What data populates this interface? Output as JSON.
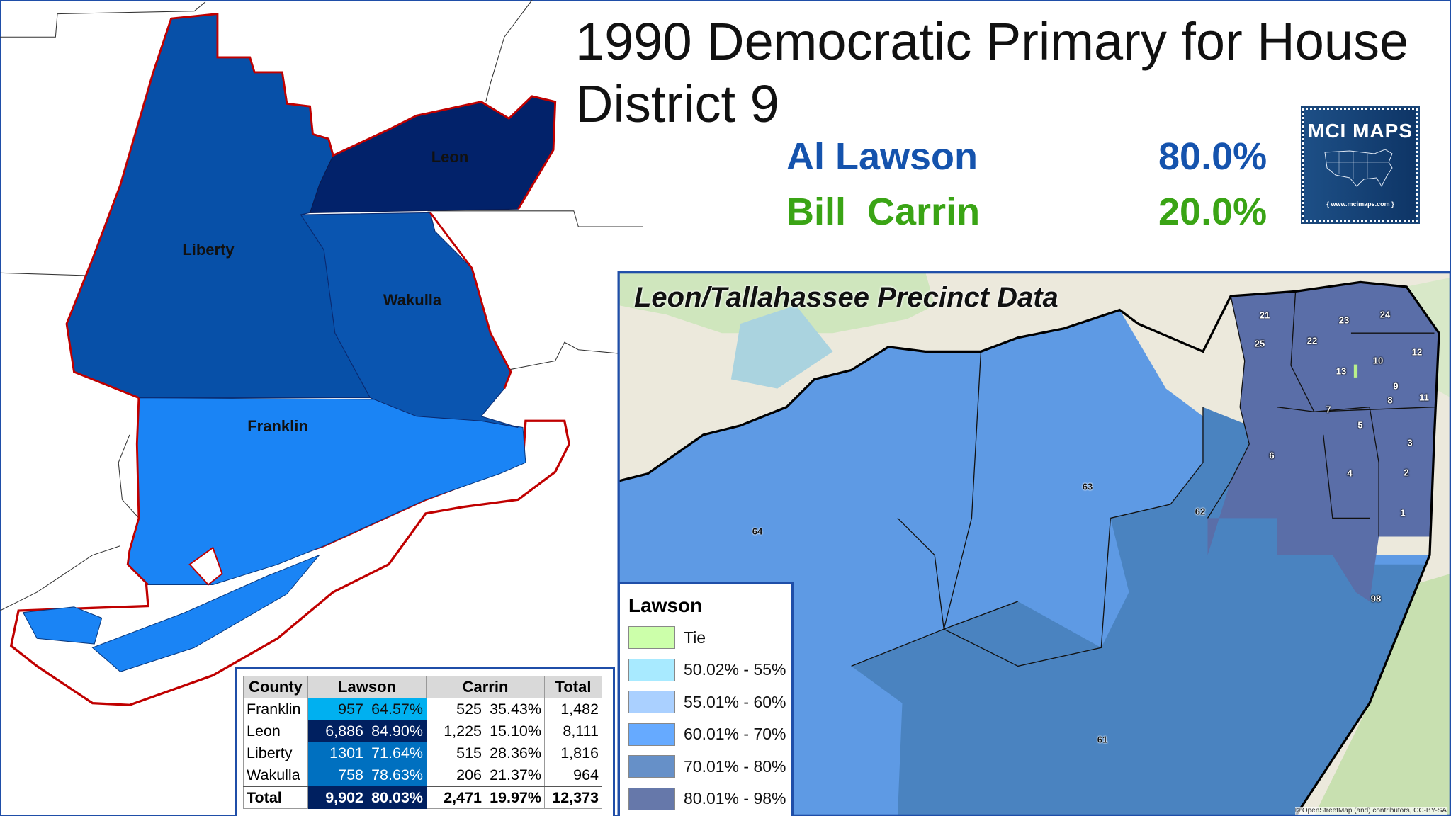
{
  "title": {
    "line1": "1990 Democratic Primary for House",
    "line2": "District 9"
  },
  "results": [
    {
      "candidate": "Al Lawson",
      "percent": "80.0%",
      "color": "#1553ad"
    },
    {
      "candidate": "Bill  Carrin",
      "percent": "20.0%",
      "color": "#3aa415"
    }
  ],
  "logo": {
    "text": "MCI MAPS",
    "url": "{ www.mcimaps.com }"
  },
  "district_map": {
    "counties": [
      {
        "name": "Leon",
        "color": "#02226a"
      },
      {
        "name": "Liberty",
        "color": "#0750a8"
      },
      {
        "name": "Wakulla",
        "color": "#0a55b0"
      },
      {
        "name": "Franklin",
        "color": "#1a84f5"
      }
    ],
    "outline_color": "#c00000"
  },
  "table": {
    "headers": [
      "County",
      "Lawson",
      "Carrin",
      "Total"
    ],
    "rows": [
      {
        "county": "Franklin",
        "lawson": "957",
        "lawson_pct": "64.57%",
        "carrin": "525",
        "carrin_pct": "35.43%",
        "total": "1,482",
        "fill": "#00b0f0",
        "text": "#111"
      },
      {
        "county": "Leon",
        "lawson": "6,886",
        "lawson_pct": "84.90%",
        "carrin": "1,225",
        "carrin_pct": "15.10%",
        "total": "8,111",
        "fill": "#002060",
        "text": "#fff"
      },
      {
        "county": "Liberty",
        "lawson": "1301",
        "lawson_pct": "71.64%",
        "carrin": "515",
        "carrin_pct": "28.36%",
        "total": "1,816",
        "fill": "#0070c0",
        "text": "#fff"
      },
      {
        "county": "Wakulla",
        "lawson": "758",
        "lawson_pct": "78.63%",
        "carrin": "206",
        "carrin_pct": "21.37%",
        "total": "964",
        "fill": "#0070c0",
        "text": "#fff"
      },
      {
        "county": "Total",
        "lawson": "9,902",
        "lawson_pct": "80.03%",
        "carrin": "2,471",
        "carrin_pct": "19.97%",
        "total": "12,373",
        "fill": "#002060",
        "text": "#fff"
      }
    ]
  },
  "precinct_map": {
    "title": "Leon/Tallahassee Precinct Data",
    "precincts": [
      "21",
      "25",
      "22",
      "23",
      "24",
      "12",
      "10",
      "13",
      "9",
      "8",
      "11",
      "7",
      "5",
      "3",
      "6",
      "4",
      "2",
      "1",
      "98",
      "63",
      "62",
      "64",
      "61"
    ],
    "attribution": "© OpenStreetMap (and) contributors, CC-BY-SA"
  },
  "legend": {
    "title": "Lawson",
    "items": [
      {
        "label": "Tie",
        "color": "#ccffaa"
      },
      {
        "label": "50.02% - 55%",
        "color": "#a8eaff"
      },
      {
        "label": "55.01% - 60%",
        "color": "#aad0ff"
      },
      {
        "label": "60.01% - 70%",
        "color": "#66aaff"
      },
      {
        "label": "70.01% - 80%",
        "color": "#6690c8"
      },
      {
        "label": "80.01% - 98%",
        "color": "#6678aa"
      }
    ]
  }
}
